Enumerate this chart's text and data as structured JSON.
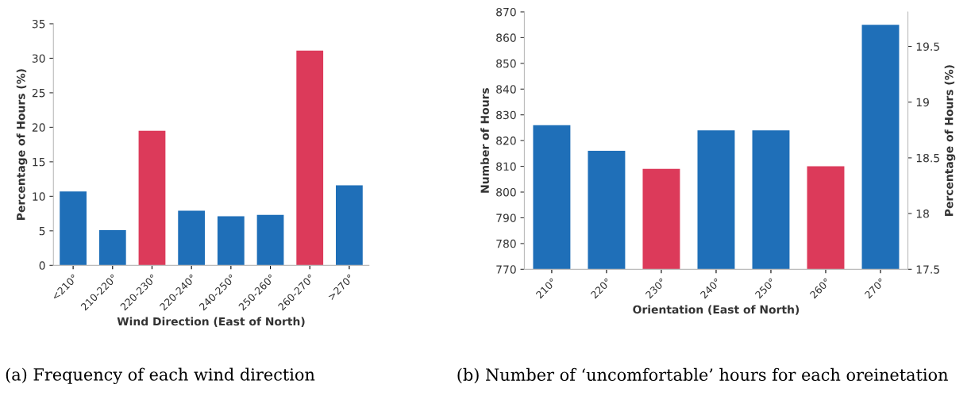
{
  "chart_data": [
    {
      "type": "bar",
      "xlabel": "Wind Direction (East of North)",
      "ylabel": "Percentage of Hours (%)",
      "categories": [
        "<210°",
        "210-220°",
        "220-230°",
        "220-240°",
        "240-250°",
        "250-260°",
        "260-270°",
        ">270°"
      ],
      "values": [
        10.7,
        5.1,
        19.5,
        7.9,
        7.1,
        7.3,
        31.1,
        11.6
      ],
      "colors": [
        "#1f6fb8",
        "#1f6fb8",
        "#dc3a5a",
        "#1f6fb8",
        "#1f6fb8",
        "#1f6fb8",
        "#dc3a5a",
        "#1f6fb8"
      ],
      "ylim": [
        0,
        35
      ],
      "yticks": [
        0,
        5,
        10,
        15,
        20,
        25,
        30,
        35
      ],
      "grid": false,
      "legend": false,
      "annotations": [
        "(a) Frequency of each wind direction"
      ]
    },
    {
      "type": "bar",
      "xlabel": "Orientation (East of North)",
      "ylabel": "Number of Hours",
      "y2label": "Percentage of Hours (%)",
      "categories": [
        "210°",
        "220°",
        "230°",
        "240°",
        "250°",
        "260°",
        "270°"
      ],
      "values": [
        826,
        816,
        809,
        824,
        824,
        810,
        865
      ],
      "colors": [
        "#1f6fb8",
        "#1f6fb8",
        "#dc3a5a",
        "#1f6fb8",
        "#1f6fb8",
        "#dc3a5a",
        "#1f6fb8"
      ],
      "ylim": [
        770,
        870
      ],
      "yticks": [
        770,
        780,
        790,
        800,
        810,
        820,
        830,
        840,
        850,
        860,
        870
      ],
      "y2lim": [
        17.5,
        19.81
      ],
      "y2ticks": [
        17.5,
        18,
        18.5,
        19,
        19.5
      ],
      "grid": false,
      "legend": false,
      "annotations": [
        "(b) Number of ‘uncomfortable’ hours for each oreinetation"
      ]
    }
  ]
}
